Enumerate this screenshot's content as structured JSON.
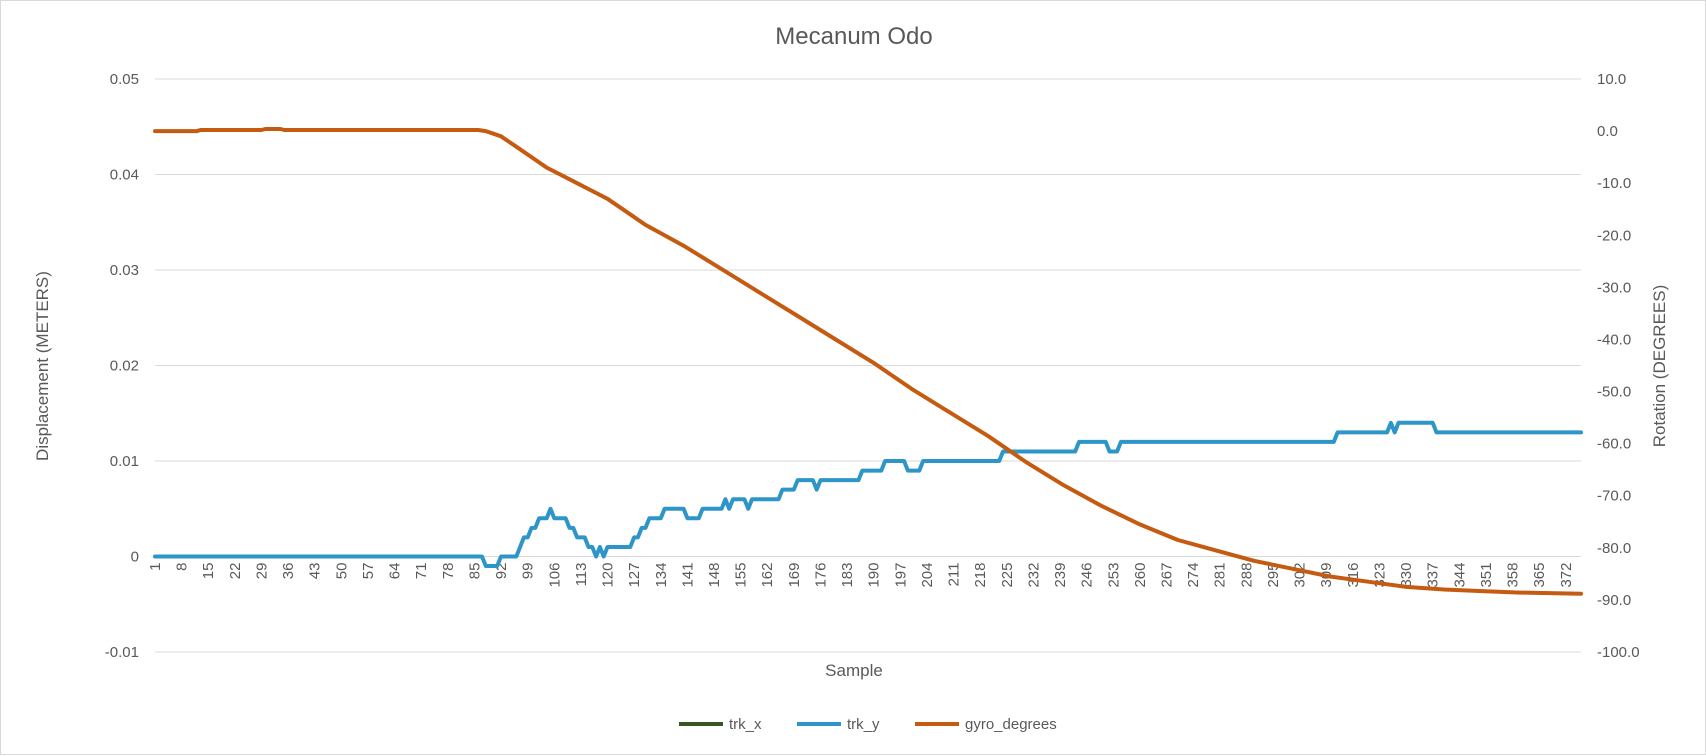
{
  "chart_data": {
    "type": "line",
    "title": "Mecanum Odo",
    "xlabel": "Sample",
    "ylabel": "Displacement (METERS)",
    "y2label": "Rotation (DEGREES)",
    "ylim": [
      -0.01,
      0.05
    ],
    "y2lim": [
      -100,
      10
    ],
    "y_ticks": [
      "0.05",
      "0.04",
      "0.03",
      "0.02",
      "0.01",
      "0",
      "-0.01"
    ],
    "y2_ticks": [
      "10.0",
      "0.0",
      "-10.0",
      "-20.0",
      "-30.0",
      "-40.0",
      "-50.0",
      "-60.0",
      "-70.0",
      "-80.0",
      "-90.0",
      "-100.0"
    ],
    "x_range": [
      1,
      376
    ],
    "x_ticks": [
      "1",
      "8",
      "15",
      "22",
      "29",
      "36",
      "43",
      "50",
      "57",
      "64",
      "71",
      "78",
      "85",
      "92",
      "99",
      "106",
      "113",
      "120",
      "127",
      "134",
      "141",
      "148",
      "155",
      "162",
      "169",
      "176",
      "183",
      "190",
      "197",
      "204",
      "211",
      "218",
      "225",
      "232",
      "239",
      "246",
      "253",
      "260",
      "267",
      "274",
      "281",
      "288",
      "295",
      "302",
      "309",
      "316",
      "323",
      "330",
      "337",
      "344",
      "351",
      "358",
      "365",
      "372"
    ],
    "grid": true,
    "legend_position": "bottom",
    "series": [
      {
        "name": "trk_x",
        "axis": "left",
        "color": "#375623",
        "points": []
      },
      {
        "name": "trk_y",
        "axis": "left",
        "color": "#2e95c8",
        "points": [
          [
            1,
            0
          ],
          [
            87,
            0
          ],
          [
            88,
            -0.001
          ],
          [
            91,
            -0.001
          ],
          [
            92,
            0
          ],
          [
            96,
            0
          ],
          [
            97,
            0.001
          ],
          [
            98,
            0.002
          ],
          [
            99,
            0.002
          ],
          [
            100,
            0.003
          ],
          [
            101,
            0.003
          ],
          [
            102,
            0.004
          ],
          [
            104,
            0.004
          ],
          [
            105,
            0.005
          ],
          [
            106,
            0.004
          ],
          [
            109,
            0.004
          ],
          [
            110,
            0.003
          ],
          [
            111,
            0.003
          ],
          [
            112,
            0.002
          ],
          [
            114,
            0.002
          ],
          [
            115,
            0.001
          ],
          [
            116,
            0.001
          ],
          [
            117,
            0
          ],
          [
            118,
            0.001
          ],
          [
            119,
            0
          ],
          [
            120,
            0.001
          ],
          [
            126,
            0.001
          ],
          [
            127,
            0.002
          ],
          [
            128,
            0.002
          ],
          [
            129,
            0.003
          ],
          [
            130,
            0.003
          ],
          [
            131,
            0.004
          ],
          [
            134,
            0.004
          ],
          [
            135,
            0.005
          ],
          [
            140,
            0.005
          ],
          [
            141,
            0.004
          ],
          [
            144,
            0.004
          ],
          [
            145,
            0.005
          ],
          [
            150,
            0.005
          ],
          [
            151,
            0.006
          ],
          [
            152,
            0.005
          ],
          [
            153,
            0.006
          ],
          [
            156,
            0.006
          ],
          [
            157,
            0.005
          ],
          [
            158,
            0.006
          ],
          [
            165,
            0.006
          ],
          [
            166,
            0.007
          ],
          [
            169,
            0.007
          ],
          [
            170,
            0.008
          ],
          [
            174,
            0.008
          ],
          [
            175,
            0.007
          ],
          [
            176,
            0.008
          ],
          [
            186,
            0.008
          ],
          [
            187,
            0.009
          ],
          [
            192,
            0.009
          ],
          [
            193,
            0.01
          ],
          [
            198,
            0.01
          ],
          [
            199,
            0.009
          ],
          [
            202,
            0.009
          ],
          [
            203,
            0.01
          ],
          [
            223,
            0.01
          ],
          [
            224,
            0.011
          ],
          [
            243,
            0.011
          ],
          [
            244,
            0.012
          ],
          [
            251,
            0.012
          ],
          [
            252,
            0.011
          ],
          [
            254,
            0.011
          ],
          [
            255,
            0.012
          ],
          [
            311,
            0.012
          ],
          [
            312,
            0.013
          ],
          [
            325,
            0.013
          ],
          [
            326,
            0.014
          ],
          [
            327,
            0.013
          ],
          [
            328,
            0.014
          ],
          [
            337,
            0.014
          ],
          [
            338,
            0.013
          ],
          [
            376,
            0.013
          ]
        ]
      },
      {
        "name": "gyro_degrees",
        "axis": "right",
        "color": "#c55a11",
        "points": [
          [
            1,
            0
          ],
          [
            12,
            0
          ],
          [
            13,
            0.2
          ],
          [
            29,
            0.2
          ],
          [
            30,
            0.4
          ],
          [
            34,
            0.4
          ],
          [
            35,
            0.2
          ],
          [
            86,
            0.2
          ],
          [
            88,
            0
          ],
          [
            90,
            -0.5
          ],
          [
            92,
            -1
          ],
          [
            94,
            -2
          ],
          [
            96,
            -3
          ],
          [
            100,
            -5
          ],
          [
            104,
            -7
          ],
          [
            108,
            -8.5
          ],
          [
            112,
            -10
          ],
          [
            116,
            -11.5
          ],
          [
            120,
            -13
          ],
          [
            124,
            -15
          ],
          [
            130,
            -18
          ],
          [
            140,
            -22
          ],
          [
            150,
            -26.5
          ],
          [
            160,
            -31
          ],
          [
            170,
            -35.5
          ],
          [
            180,
            -40
          ],
          [
            190,
            -44.5
          ],
          [
            200,
            -49.5
          ],
          [
            210,
            -54
          ],
          [
            220,
            -58.5
          ],
          [
            230,
            -63.5
          ],
          [
            240,
            -68
          ],
          [
            250,
            -72
          ],
          [
            260,
            -75.5
          ],
          [
            270,
            -78.5
          ],
          [
            280,
            -80.5
          ],
          [
            290,
            -82.5
          ],
          [
            300,
            -84
          ],
          [
            310,
            -85.5
          ],
          [
            320,
            -86.5
          ],
          [
            330,
            -87.5
          ],
          [
            340,
            -88
          ],
          [
            350,
            -88.3
          ],
          [
            360,
            -88.6
          ],
          [
            376,
            -88.8
          ]
        ]
      }
    ]
  }
}
